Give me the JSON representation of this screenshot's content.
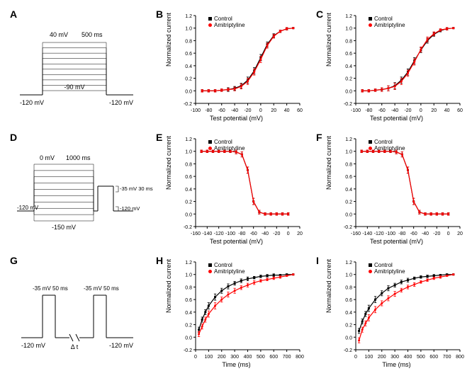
{
  "panels": {
    "A": {
      "label": "A"
    },
    "B": {
      "label": "B"
    },
    "C": {
      "label": "C"
    },
    "D": {
      "label": "D"
    },
    "E": {
      "label": "E"
    },
    "F": {
      "label": "F"
    },
    "G": {
      "label": "G"
    },
    "H": {
      "label": "H"
    },
    "I": {
      "label": "I"
    }
  },
  "legend": {
    "control_label": "Control",
    "drug_label": "Amitriptyline",
    "control_color": "#000000",
    "drug_color": "#ff0000"
  },
  "colors": {
    "bg": "#ffffff",
    "axis": "#000000",
    "control": "#000000",
    "drug": "#ff0000",
    "protocol_line": "#000000",
    "protocol_fill": "#ffffff"
  },
  "protocol_A": {
    "top_labels": [
      "40 mV",
      "500 ms"
    ],
    "mid_label": "-90 mV",
    "baseline_left": "-120 mV",
    "baseline_right": "-120 mV",
    "n_steps": 10
  },
  "protocol_D": {
    "top_labels": [
      "0 mV",
      "1000 ms"
    ],
    "right_top": "-35 mV  30 ms",
    "right_mid": "-120 mV",
    "bottom_label": "-150 mV",
    "baseline_left": "-120 mV",
    "n_steps": 10
  },
  "protocol_G": {
    "pulse_left": "-35 mV 50 ms",
    "pulse_right": "-35 mV 50 ms",
    "baseline_left": "-120 mV",
    "baseline_right": "-120 mV",
    "delta": "Δ t"
  },
  "chart_activation": {
    "type": "line",
    "xlabel": "Test potential (mV)",
    "ylabel": "Normalized current",
    "xlim": [
      -100,
      60
    ],
    "ylim": [
      -0.2,
      1.2
    ],
    "xticks": [
      -100,
      -80,
      -60,
      -40,
      -20,
      0,
      20,
      40,
      60
    ],
    "yticks": [
      -0.2,
      0.0,
      0.2,
      0.4,
      0.6,
      0.8,
      1.0,
      1.2
    ],
    "x": [
      -90,
      -80,
      -70,
      -60,
      -50,
      -40,
      -30,
      -20,
      -10,
      0,
      10,
      20,
      30,
      40,
      50
    ],
    "control_y": [
      0.0,
      0.0,
      0.0,
      0.01,
      0.02,
      0.04,
      0.08,
      0.17,
      0.32,
      0.53,
      0.74,
      0.88,
      0.95,
      0.99,
      1.0
    ],
    "drug_y": [
      0.0,
      0.0,
      0.0,
      0.01,
      0.02,
      0.03,
      0.07,
      0.15,
      0.3,
      0.5,
      0.72,
      0.87,
      0.95,
      0.99,
      1.0
    ],
    "control_err": [
      0.02,
      0.02,
      0.02,
      0.02,
      0.03,
      0.03,
      0.04,
      0.05,
      0.05,
      0.05,
      0.04,
      0.03,
      0.02,
      0.02,
      0.01
    ],
    "drug_err": [
      0.02,
      0.02,
      0.02,
      0.02,
      0.02,
      0.03,
      0.04,
      0.05,
      0.05,
      0.05,
      0.04,
      0.03,
      0.02,
      0.02,
      0.01
    ],
    "line_width": 1.2,
    "marker_size": 3.0,
    "control_marker": "square",
    "drug_marker": "circle"
  },
  "chart_activation_C": {
    "type": "line",
    "xlabel": "Test potential (mV)",
    "ylabel": "Normalized current",
    "xlim": [
      -100,
      60
    ],
    "ylim": [
      -0.2,
      1.2
    ],
    "xticks": [
      -100,
      -80,
      -60,
      -40,
      -20,
      0,
      20,
      40,
      60
    ],
    "yticks": [
      -0.2,
      0.0,
      0.2,
      0.4,
      0.6,
      0.8,
      1.0,
      1.2
    ],
    "x": [
      -90,
      -80,
      -70,
      -60,
      -50,
      -40,
      -30,
      -20,
      -10,
      0,
      10,
      20,
      30,
      40,
      50
    ],
    "control_y": [
      0.0,
      0.0,
      0.01,
      0.02,
      0.04,
      0.08,
      0.17,
      0.3,
      0.48,
      0.65,
      0.8,
      0.9,
      0.96,
      0.99,
      1.0
    ],
    "drug_y": [
      0.0,
      0.0,
      0.01,
      0.02,
      0.04,
      0.07,
      0.15,
      0.28,
      0.46,
      0.66,
      0.82,
      0.91,
      0.97,
      0.99,
      1.0
    ],
    "control_err": [
      0.02,
      0.02,
      0.02,
      0.03,
      0.04,
      0.05,
      0.05,
      0.05,
      0.05,
      0.04,
      0.04,
      0.03,
      0.02,
      0.02,
      0.01
    ],
    "drug_err": [
      0.02,
      0.02,
      0.02,
      0.03,
      0.04,
      0.05,
      0.05,
      0.05,
      0.05,
      0.04,
      0.04,
      0.03,
      0.02,
      0.02,
      0.01
    ],
    "line_width": 1.2,
    "marker_size": 3.0
  },
  "chart_inactivation": {
    "type": "line",
    "xlabel": "Test potential (mV)",
    "ylabel": "Normalized current",
    "xlim": [
      -160,
      20
    ],
    "ylim": [
      -0.2,
      1.2
    ],
    "xticks": [
      -160,
      -140,
      -120,
      -100,
      -80,
      -60,
      -40,
      -20,
      0,
      20
    ],
    "yticks": [
      -0.2,
      0.0,
      0.2,
      0.4,
      0.6,
      0.8,
      1.0,
      1.2
    ],
    "x": [
      -150,
      -140,
      -130,
      -120,
      -110,
      -100,
      -90,
      -80,
      -70,
      -60,
      -50,
      -40,
      -30,
      -20,
      -10,
      0
    ],
    "y": [
      1.0,
      1.0,
      1.0,
      1.0,
      1.0,
      1.0,
      0.99,
      0.95,
      0.7,
      0.2,
      0.03,
      0.0,
      0.0,
      0.0,
      0.0,
      0.0
    ],
    "err": [
      0.02,
      0.02,
      0.02,
      0.02,
      0.02,
      0.02,
      0.03,
      0.04,
      0.05,
      0.05,
      0.03,
      0.02,
      0.02,
      0.02,
      0.02,
      0.02
    ],
    "line_width": 1.2,
    "marker_size": 3.0
  },
  "chart_recovery_H": {
    "type": "line",
    "xlabel": "Time (ms)",
    "ylabel": "Normalized current",
    "xlim": [
      0,
      800
    ],
    "ylim": [
      -0.2,
      1.2
    ],
    "xticks": [
      0,
      100,
      200,
      300,
      400,
      500,
      600,
      700,
      800
    ],
    "yticks": [
      -0.2,
      0.0,
      0.2,
      0.4,
      0.6,
      0.8,
      1.0,
      1.2
    ],
    "x": [
      25,
      50,
      75,
      100,
      150,
      200,
      250,
      300,
      350,
      400,
      450,
      500,
      550,
      600,
      650,
      700,
      750
    ],
    "control_y": [
      0.12,
      0.28,
      0.4,
      0.5,
      0.64,
      0.74,
      0.81,
      0.86,
      0.9,
      0.93,
      0.95,
      0.97,
      0.98,
      0.99,
      0.99,
      1.0,
      1.0
    ],
    "drug_y": [
      0.05,
      0.17,
      0.28,
      0.37,
      0.5,
      0.6,
      0.68,
      0.74,
      0.79,
      0.83,
      0.87,
      0.9,
      0.92,
      0.94,
      0.96,
      0.98,
      1.0
    ],
    "control_err": [
      0.04,
      0.04,
      0.04,
      0.05,
      0.05,
      0.04,
      0.04,
      0.03,
      0.03,
      0.03,
      0.02,
      0.02,
      0.02,
      0.02,
      0.01,
      0.01,
      0.01
    ],
    "drug_err": [
      0.04,
      0.04,
      0.04,
      0.05,
      0.05,
      0.04,
      0.04,
      0.04,
      0.03,
      0.03,
      0.03,
      0.02,
      0.02,
      0.02,
      0.02,
      0.01,
      0.01
    ],
    "line_width": 1.2,
    "marker_size": 3.0
  },
  "chart_recovery_I": {
    "type": "line",
    "xlabel": "Time (ms)",
    "ylabel": "Normalized current",
    "xlim": [
      0,
      800
    ],
    "ylim": [
      -0.2,
      1.2
    ],
    "xticks": [
      0,
      100,
      200,
      300,
      400,
      500,
      600,
      700,
      800
    ],
    "yticks": [
      -0.2,
      0.0,
      0.2,
      0.4,
      0.6,
      0.8,
      1.0,
      1.2
    ],
    "x": [
      25,
      50,
      75,
      100,
      150,
      200,
      250,
      300,
      350,
      400,
      450,
      500,
      550,
      600,
      650,
      700,
      750
    ],
    "control_y": [
      0.1,
      0.25,
      0.37,
      0.46,
      0.6,
      0.7,
      0.78,
      0.83,
      0.88,
      0.91,
      0.94,
      0.96,
      0.97,
      0.98,
      0.99,
      1.0,
      1.0
    ],
    "drug_y": [
      -0.05,
      0.12,
      0.22,
      0.31,
      0.44,
      0.54,
      0.62,
      0.69,
      0.75,
      0.8,
      0.84,
      0.88,
      0.91,
      0.94,
      0.96,
      0.98,
      1.0
    ],
    "control_err": [
      0.04,
      0.04,
      0.04,
      0.05,
      0.05,
      0.04,
      0.04,
      0.03,
      0.03,
      0.03,
      0.02,
      0.02,
      0.02,
      0.02,
      0.01,
      0.01,
      0.01
    ],
    "drug_err": [
      0.04,
      0.04,
      0.04,
      0.05,
      0.05,
      0.04,
      0.04,
      0.04,
      0.03,
      0.03,
      0.03,
      0.02,
      0.02,
      0.02,
      0.02,
      0.01,
      0.01
    ],
    "line_width": 1.2,
    "marker_size": 3.0
  }
}
